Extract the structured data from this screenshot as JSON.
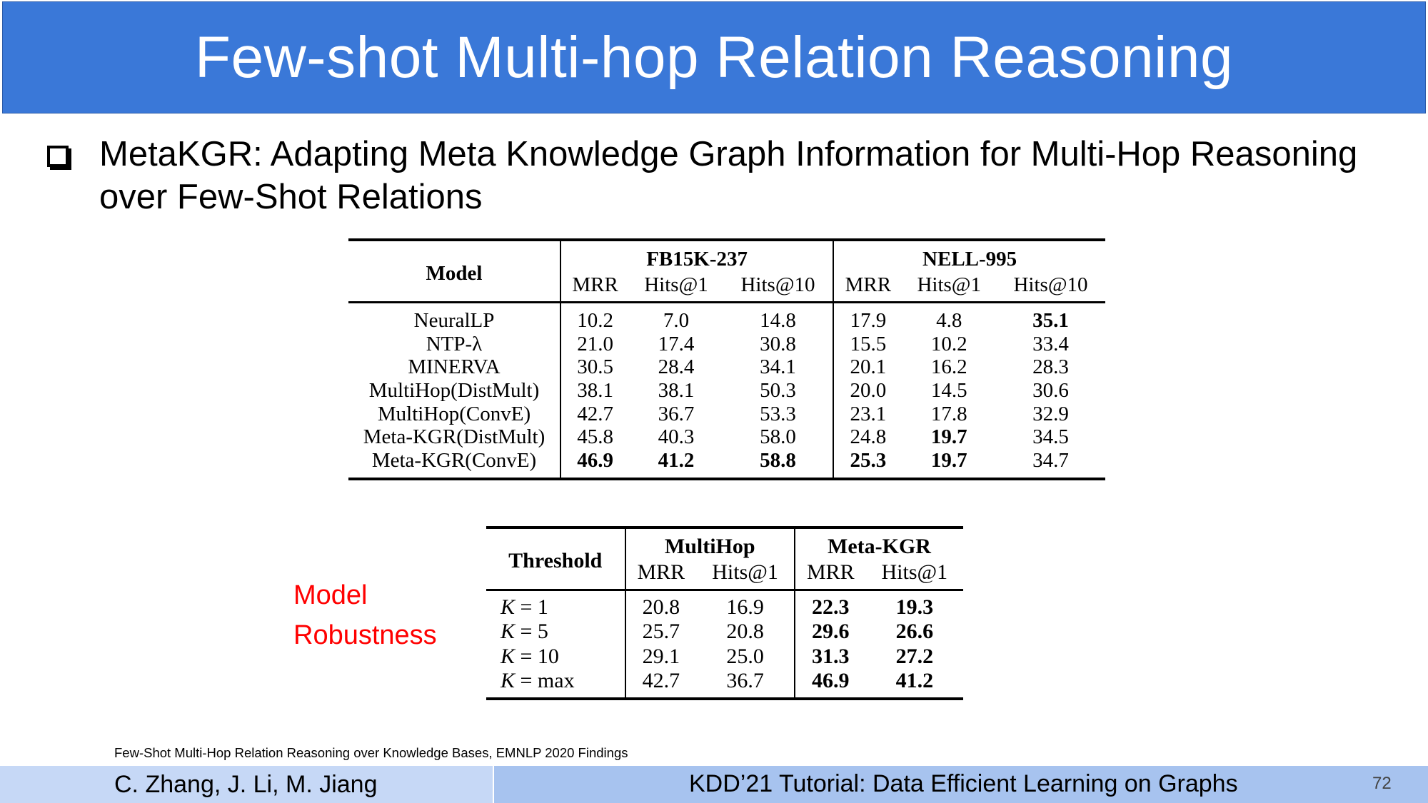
{
  "slide": {
    "title": "Few-shot Multi-hop Relation Reasoning",
    "bullet": "MetaKGR: Adapting Meta Knowledge Graph Information for Multi-Hop Reasoning over Few-Shot Relations",
    "side_label_line1": "Model",
    "side_label_line2": "Robustness",
    "citation": "Few-Shot Multi-Hop Relation Reasoning over Knowledge Bases, EMNLP 2020 Findings",
    "footer_authors": "C. Zhang, J. Li, M. Jiang",
    "footer_event": "KDD’21 Tutorial: Data Efficient Learning on Graphs",
    "page_number": "72"
  },
  "table1": {
    "model_header": "Model",
    "group1": "FB15K-237",
    "group2": "NELL-995",
    "metrics": [
      "MRR",
      "Hits@1",
      "Hits@10",
      "MRR",
      "Hits@1",
      "Hits@10"
    ],
    "rows": [
      {
        "model": "NeuralLP",
        "v": [
          "10.2",
          "7.0",
          "14.8",
          "17.9",
          "4.8",
          "35.1"
        ]
      },
      {
        "model": "NTP-λ",
        "v": [
          "21.0",
          "17.4",
          "30.8",
          "15.5",
          "10.2",
          "33.4"
        ]
      },
      {
        "model": "MINERVA",
        "v": [
          "30.5",
          "28.4",
          "34.1",
          "20.1",
          "16.2",
          "28.3"
        ]
      },
      {
        "model": "MultiHop(DistMult)",
        "v": [
          "38.1",
          "38.1",
          "50.3",
          "20.0",
          "14.5",
          "30.6"
        ]
      },
      {
        "model": "MultiHop(ConvE)",
        "v": [
          "42.7",
          "36.7",
          "53.3",
          "23.1",
          "17.8",
          "32.9"
        ]
      },
      {
        "model": "Meta-KGR(DistMult)",
        "v": [
          "45.8",
          "40.3",
          "58.0",
          "24.8",
          "19.7",
          "34.5"
        ]
      },
      {
        "model": "Meta-KGR(ConvE)",
        "v": [
          "46.9",
          "41.2",
          "58.8",
          "25.3",
          "19.7",
          "34.7"
        ]
      }
    ]
  },
  "table2": {
    "threshold_header": "Threshold",
    "group1": "MultiHop",
    "group2": "Meta-KGR",
    "metrics": [
      "MRR",
      "Hits@1",
      "MRR",
      "Hits@1"
    ],
    "rows": [
      {
        "k_var": "K",
        "k_val": "= 1",
        "v": [
          "20.8",
          "16.9",
          "22.3",
          "19.3"
        ]
      },
      {
        "k_var": "K",
        "k_val": "= 5",
        "v": [
          "25.7",
          "20.8",
          "29.6",
          "26.6"
        ]
      },
      {
        "k_var": "K",
        "k_val": "= 10",
        "v": [
          "29.1",
          "25.0",
          "31.3",
          "27.2"
        ]
      },
      {
        "k_var": "K",
        "k_val": "= max",
        "v": [
          "42.7",
          "36.7",
          "46.9",
          "41.2"
        ]
      }
    ]
  }
}
